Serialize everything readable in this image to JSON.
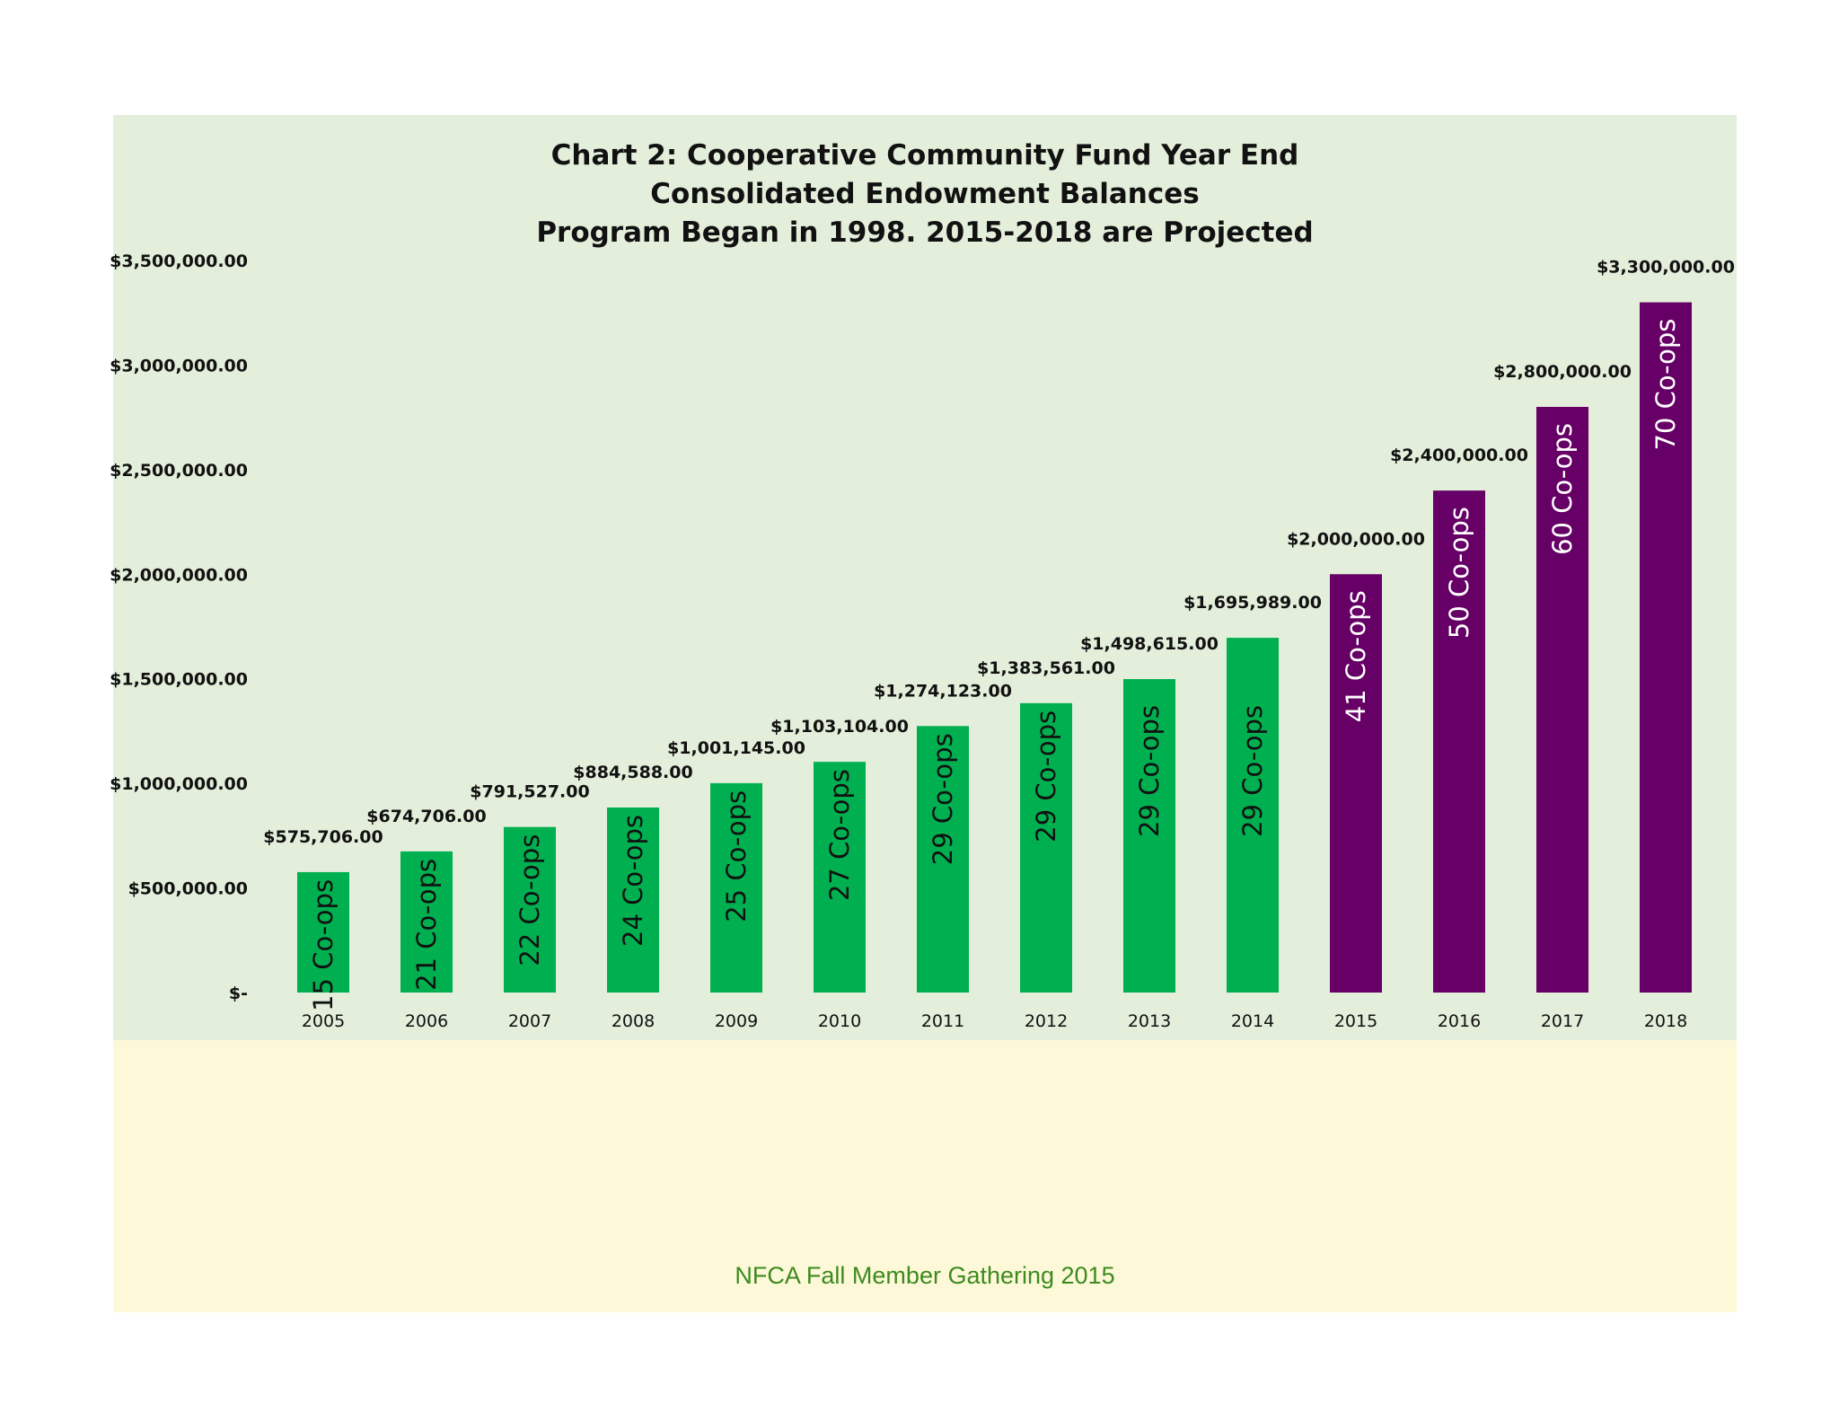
{
  "chart_data": {
    "type": "bar",
    "title_lines": [
      "Chart 2: Cooperative Community Fund Year End",
      "Consolidated Endowment Balances",
      "Program Began in 1998. 2015-2018 are Projected"
    ],
    "categories": [
      "2005",
      "2006",
      "2007",
      "2008",
      "2009",
      "2010",
      "2011",
      "2012",
      "2013",
      "2014",
      "2015",
      "2016",
      "2017",
      "2018"
    ],
    "values": [
      575706,
      674706,
      791527,
      884588,
      1001145,
      1103104,
      1274123,
      1383561,
      1498615,
      1695989,
      2000000,
      2400000,
      2800000,
      3300000
    ],
    "value_labels": [
      "$575,706.00",
      "$674,706.00",
      "$791,527.00",
      "$884,588.00",
      "$1,001,145.00",
      "$1,103,104.00",
      "$1,274,123.00",
      "$1,383,561.00",
      "$1,498,615.00",
      "$1,695,989.00",
      "$2,000,000.00",
      "$2,400,000.00",
      "$2,800,000.00",
      "$3,300,000.00"
    ],
    "bar_labels": [
      "15 Co-ops",
      "21 Co-ops",
      "22 Co-ops",
      "24 Co-ops",
      "25 Co-ops",
      "27 Co-ops",
      "29  Co-ops",
      "29 Co-ops",
      "29 Co-ops",
      "29 Co-ops",
      "41 Co-ops",
      "50 Co-ops",
      "60 Co-ops",
      "70 Co-ops"
    ],
    "projected": [
      false,
      false,
      false,
      false,
      false,
      false,
      false,
      false,
      false,
      false,
      true,
      true,
      true,
      true
    ],
    "y_ticks": [
      0,
      500000,
      1000000,
      1500000,
      2000000,
      2500000,
      3000000,
      3500000
    ],
    "y_tick_labels": [
      "$-",
      "$500,000.00",
      "$1,000,000.00",
      "$1,500,000.00",
      "$2,000,000.00",
      "$2,500,000.00",
      "$3,000,000.00",
      "$3,500,000.00"
    ],
    "ylim": [
      0,
      3500000
    ],
    "xlabel": "",
    "ylabel": "",
    "grid": false,
    "colors": {
      "actual": "#00b050",
      "projected": "#660066",
      "actual_text": "#111111",
      "projected_text": "#ffffff"
    }
  },
  "footer": {
    "text": "NFCA Fall Member Gathering 2015"
  }
}
